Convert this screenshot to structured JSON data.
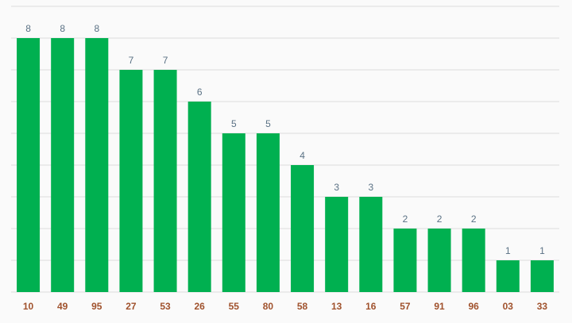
{
  "chart_data": {
    "type": "bar",
    "categories": [
      "10",
      "49",
      "95",
      "27",
      "53",
      "26",
      "55",
      "80",
      "58",
      "13",
      "16",
      "57",
      "91",
      "96",
      "03",
      "33"
    ],
    "values": [
      8,
      8,
      8,
      7,
      7,
      6,
      5,
      5,
      4,
      3,
      3,
      2,
      2,
      2,
      1,
      1
    ],
    "ylim": [
      0,
      9
    ],
    "grid": true,
    "colors": {
      "bar": "#00b050",
      "value_label": "#5a7184",
      "category_label": "#a0522d",
      "grid": "#dcdcdc"
    }
  }
}
